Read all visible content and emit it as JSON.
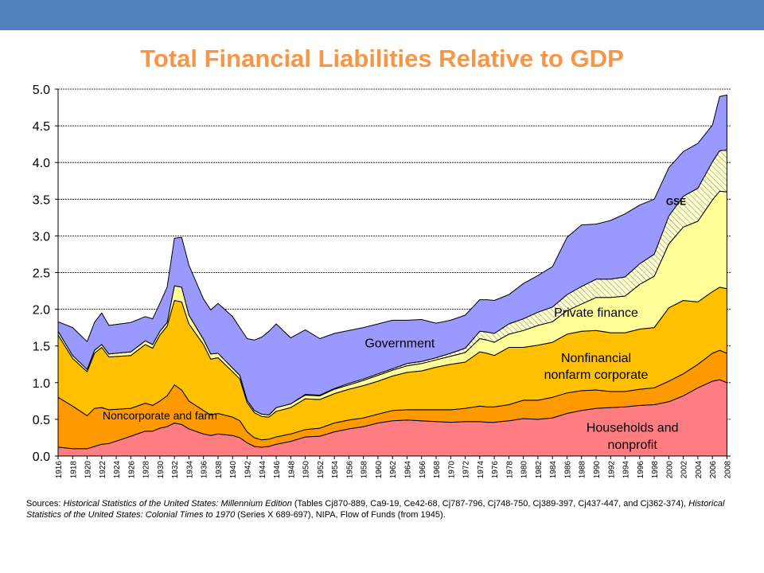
{
  "header": {
    "bar_color": "#4f81bd"
  },
  "title": "Total Financial Liabilities Relative to GDP",
  "sources": {
    "prefix": "Sources: ",
    "src1": "Historical Statistics of the United States: Millennium Edition",
    "src1_detail": " (Tables Cj870-889, Ca9-19, Ce42-68, Cj787-796, Cj748-750, Cj389-397, Cj437-447, and Cj362-374), ",
    "src2": "Historical Statistics of the United States: Colonial Times to 1970",
    "src2_detail": " (Series X 689-697), NIPA, Flow of Funds (from 1945)."
  },
  "chart_data": {
    "type": "area",
    "stacked": true,
    "ylim": [
      0,
      5.0
    ],
    "y_ticks": [
      "0.0",
      "0.5",
      "1.0",
      "1.5",
      "2.0",
      "2.5",
      "3.0",
      "3.5",
      "4.0",
      "4.5",
      "5.0"
    ],
    "x_tick_labels": [
      "1916",
      "1918",
      "1920",
      "1922",
      "1924",
      "1926",
      "1928",
      "1930",
      "1932",
      "1934",
      "1936",
      "1938",
      "1940",
      "1942",
      "1944",
      "1946",
      "1948",
      "1950",
      "1952",
      "1954",
      "1956",
      "1958",
      "1960",
      "1962",
      "1964",
      "1966",
      "1968",
      "1970",
      "1972",
      "1974",
      "1976",
      "1978",
      "1980",
      "1982",
      "1984",
      "1986",
      "1988",
      "1990",
      "1992",
      "1994",
      "1996",
      "1998",
      "2000",
      "2002",
      "2004",
      "2006",
      "2008"
    ],
    "grid": "horizontal dashed",
    "x": [
      1916,
      1918,
      1920,
      1921,
      1922,
      1923,
      1926,
      1928,
      1929,
      1930,
      1931,
      1932,
      1933,
      1934,
      1936,
      1937,
      1938,
      1940,
      1941,
      1942,
      1943,
      1944,
      1945,
      1946,
      1948,
      1950,
      1952,
      1954,
      1956,
      1958,
      1960,
      1962,
      1964,
      1966,
      1968,
      1970,
      1972,
      1974,
      1975,
      1976,
      1978,
      1980,
      1982,
      1984,
      1986,
      1988,
      1990,
      1992,
      1994,
      1996,
      1998,
      2000,
      2002,
      2004,
      2006,
      2007,
      2008
    ],
    "series": [
      {
        "name": "Households and nonprofit",
        "color": "#ff7c80",
        "values": [
          0.12,
          0.1,
          0.1,
          0.13,
          0.16,
          0.17,
          0.27,
          0.34,
          0.34,
          0.38,
          0.4,
          0.45,
          0.43,
          0.37,
          0.3,
          0.28,
          0.3,
          0.28,
          0.25,
          0.18,
          0.13,
          0.12,
          0.13,
          0.16,
          0.2,
          0.26,
          0.27,
          0.33,
          0.37,
          0.4,
          0.45,
          0.48,
          0.49,
          0.48,
          0.47,
          0.46,
          0.47,
          0.47,
          0.46,
          0.46,
          0.48,
          0.51,
          0.5,
          0.52,
          0.58,
          0.62,
          0.65,
          0.66,
          0.67,
          0.69,
          0.7,
          0.74,
          0.82,
          0.93,
          1.02,
          1.04,
          1.0
        ]
      },
      {
        "name": "Noncorporate and farm",
        "color": "#ff9900",
        "values": [
          0.68,
          0.58,
          0.45,
          0.52,
          0.5,
          0.46,
          0.38,
          0.38,
          0.35,
          0.37,
          0.42,
          0.52,
          0.47,
          0.38,
          0.32,
          0.28,
          0.28,
          0.25,
          0.23,
          0.15,
          0.12,
          0.1,
          0.1,
          0.1,
          0.1,
          0.1,
          0.11,
          0.12,
          0.12,
          0.12,
          0.12,
          0.14,
          0.14,
          0.15,
          0.16,
          0.17,
          0.18,
          0.21,
          0.21,
          0.21,
          0.22,
          0.25,
          0.26,
          0.28,
          0.28,
          0.27,
          0.25,
          0.22,
          0.21,
          0.22,
          0.23,
          0.28,
          0.3,
          0.32,
          0.38,
          0.4,
          0.4
        ]
      },
      {
        "name": "Nonfinancial nonfarm corporate",
        "color": "#ffc000",
        "values": [
          0.85,
          0.65,
          0.6,
          0.75,
          0.82,
          0.72,
          0.72,
          0.8,
          0.78,
          0.9,
          0.95,
          1.15,
          1.2,
          1.05,
          0.9,
          0.76,
          0.76,
          0.62,
          0.57,
          0.4,
          0.34,
          0.32,
          0.3,
          0.35,
          0.36,
          0.42,
          0.39,
          0.4,
          0.42,
          0.44,
          0.45,
          0.47,
          0.51,
          0.53,
          0.58,
          0.62,
          0.63,
          0.74,
          0.73,
          0.7,
          0.78,
          0.72,
          0.75,
          0.75,
          0.8,
          0.81,
          0.81,
          0.8,
          0.8,
          0.82,
          0.82,
          1.0,
          1.0,
          0.85,
          0.84,
          0.86,
          0.88
        ]
      },
      {
        "name": "Private finance",
        "color": "#ffff99",
        "values": [
          0.05,
          0.04,
          0.03,
          0.04,
          0.04,
          0.04,
          0.05,
          0.05,
          0.05,
          0.05,
          0.05,
          0.2,
          0.2,
          0.12,
          0.07,
          0.07,
          0.06,
          0.05,
          0.05,
          0.03,
          0.03,
          0.03,
          0.03,
          0.05,
          0.05,
          0.05,
          0.05,
          0.06,
          0.06,
          0.07,
          0.08,
          0.08,
          0.09,
          0.1,
          0.1,
          0.11,
          0.13,
          0.18,
          0.18,
          0.18,
          0.18,
          0.23,
          0.27,
          0.28,
          0.32,
          0.37,
          0.45,
          0.48,
          0.5,
          0.61,
          0.7,
          0.87,
          1.0,
          1.1,
          1.25,
          1.31,
          1.32
        ]
      },
      {
        "name": "GSE",
        "color": "#ffffcc",
        "hatched": true,
        "values": [
          0,
          0,
          0,
          0,
          0,
          0,
          0,
          0,
          0,
          0,
          0,
          0,
          0,
          0,
          0,
          0,
          0,
          0,
          0,
          0,
          0,
          0,
          0,
          0,
          0,
          0.01,
          0.01,
          0.01,
          0.02,
          0.02,
          0.02,
          0.02,
          0.03,
          0.03,
          0.03,
          0.04,
          0.06,
          0.1,
          0.11,
          0.12,
          0.14,
          0.16,
          0.18,
          0.2,
          0.22,
          0.24,
          0.25,
          0.25,
          0.26,
          0.28,
          0.3,
          0.38,
          0.42,
          0.45,
          0.52,
          0.55,
          0.57
        ]
      },
      {
        "name": "Government",
        "color": "#9999ff",
        "values": [
          0.13,
          0.38,
          0.38,
          0.38,
          0.43,
          0.39,
          0.4,
          0.33,
          0.35,
          0.38,
          0.48,
          0.65,
          0.68,
          0.68,
          0.55,
          0.6,
          0.68,
          0.7,
          0.65,
          0.84,
          0.96,
          1.05,
          1.14,
          1.14,
          0.9,
          0.88,
          0.77,
          0.75,
          0.72,
          0.7,
          0.68,
          0.66,
          0.59,
          0.57,
          0.47,
          0.45,
          0.45,
          0.43,
          0.44,
          0.45,
          0.4,
          0.48,
          0.5,
          0.55,
          0.78,
          0.84,
          0.75,
          0.8,
          0.86,
          0.8,
          0.75,
          0.66,
          0.61,
          0.61,
          0.5,
          0.74,
          0.75
        ]
      }
    ],
    "annotations": [
      {
        "text": "Government",
        "x": 1963,
        "y": 1.48
      },
      {
        "text": "Private finance",
        "x": 1990,
        "y": 1.9
      },
      {
        "text": "GSE",
        "x": 2001,
        "y": 3.42,
        "bold": true
      },
      {
        "text": "Nonfinancial",
        "x": 1990,
        "y": 1.28
      },
      {
        "text": "nonfarm corporate",
        "x": 1990,
        "y": 1.05
      },
      {
        "text": "Noncorporate and farm",
        "x": 1930,
        "y": 0.5
      },
      {
        "text": "Households and",
        "x": 1995,
        "y": 0.33
      },
      {
        "text": "nonprofit",
        "x": 1995,
        "y": 0.1
      }
    ]
  }
}
